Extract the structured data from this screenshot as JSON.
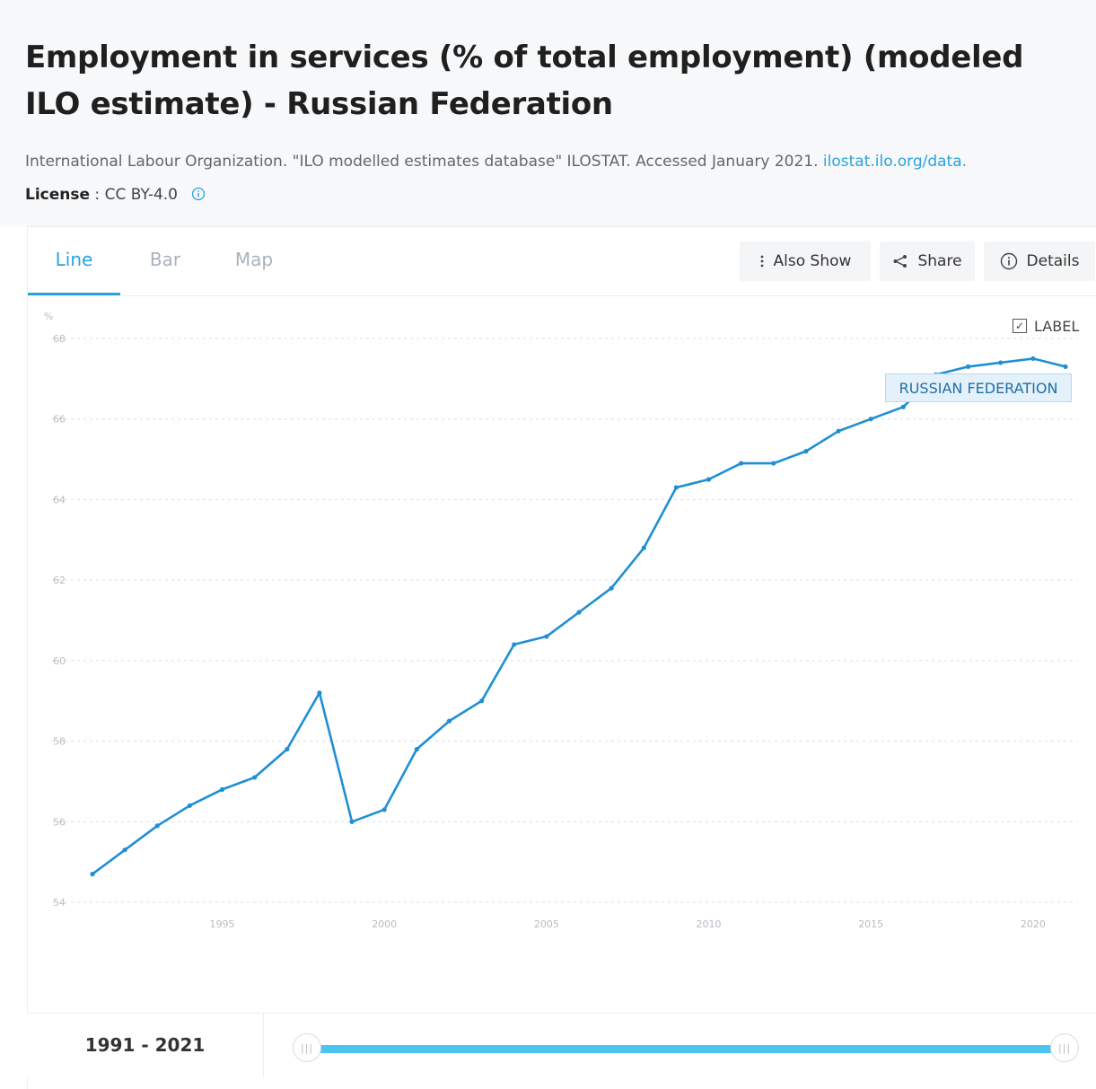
{
  "header": {
    "title": "Employment in services (% of total employment) (modeled ILO estimate) - Russian Federation",
    "source_text": "International Labour Organization. \"ILO modelled estimates database\" ILOSTAT. Accessed January 2021.",
    "source_link": "ilostat.ilo.org/data.",
    "license_label": "License",
    "license_sep": " : ",
    "license_value": "CC BY-4.0"
  },
  "tabs": {
    "line": "Line",
    "bar": "Bar",
    "map": "Map"
  },
  "tools": {
    "also_show": "Also Show",
    "share": "Share",
    "details": "Details"
  },
  "label_toggle": {
    "text": "LABEL",
    "checked": true
  },
  "series_label": "RUSSIAN FEDERATION",
  "range": {
    "text": "1991 - 2021",
    "handle_glyph": "|||"
  },
  "colors": {
    "accent": "#2aa3dc",
    "line": "#1f8fd3",
    "slider": "#4cc4f0"
  },
  "chart_data": {
    "type": "line",
    "title": "",
    "xlabel": "",
    "ylabel": "%",
    "ylim": [
      54,
      68
    ],
    "xlim": [
      1991,
      2021
    ],
    "x_ticks": [
      1995,
      2000,
      2005,
      2010,
      2015,
      2020
    ],
    "y_ticks": [
      54,
      56,
      58,
      60,
      62,
      64,
      66,
      68
    ],
    "grid": true,
    "series": [
      {
        "name": "RUSSIAN FEDERATION",
        "x": [
          1991,
          1992,
          1993,
          1994,
          1995,
          1996,
          1997,
          1998,
          1999,
          2000,
          2001,
          2002,
          2003,
          2004,
          2005,
          2006,
          2007,
          2008,
          2009,
          2010,
          2011,
          2012,
          2013,
          2014,
          2015,
          2016,
          2017,
          2018,
          2019,
          2020,
          2021
        ],
        "values": [
          54.7,
          55.3,
          55.9,
          56.4,
          56.8,
          57.1,
          57.8,
          59.2,
          56.0,
          56.3,
          57.8,
          58.5,
          59.0,
          60.4,
          60.6,
          61.2,
          61.8,
          62.8,
          64.3,
          64.5,
          64.9,
          64.9,
          65.2,
          65.7,
          66.0,
          66.3,
          67.1,
          67.3,
          67.4,
          67.5,
          67.3
        ]
      }
    ]
  }
}
